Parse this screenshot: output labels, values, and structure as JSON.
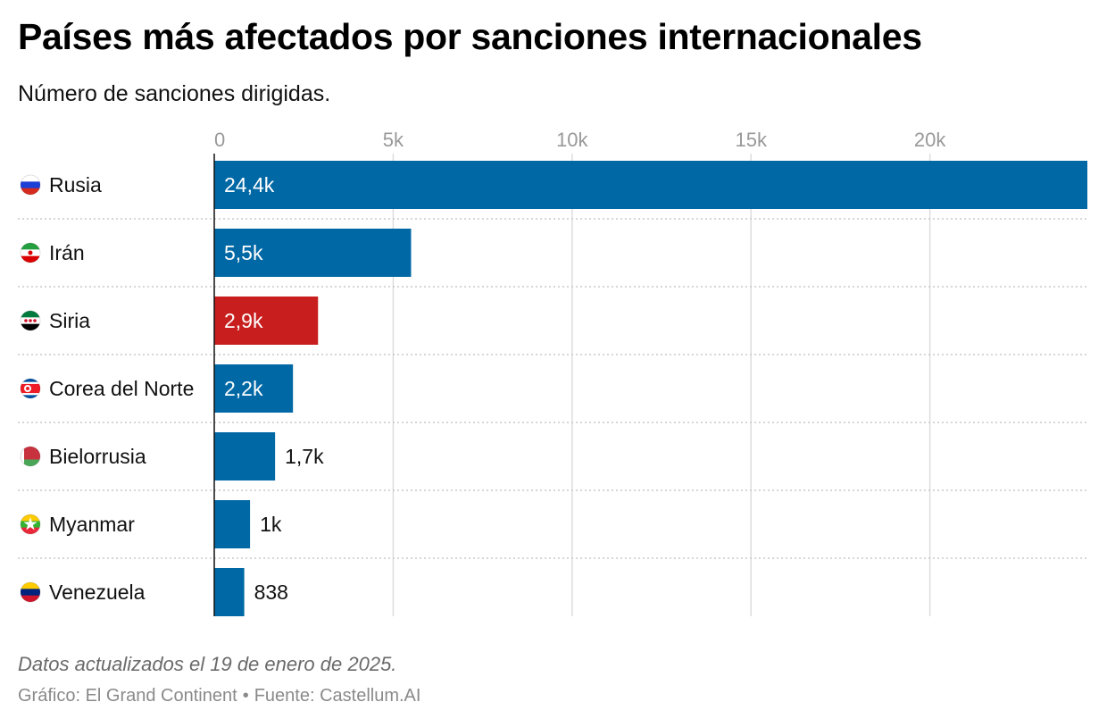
{
  "header": {
    "title": "Países más afectados por sanciones internacionales",
    "subtitle": "Número de sanciones dirigidas."
  },
  "footer": {
    "note": "Datos actualizados el 19 de enero de 2025.",
    "credit": "Gráfico: El Grand Continent",
    "separator": "•",
    "source": "Fuente: Castellum.AI"
  },
  "colors": {
    "bar": "#0068a5",
    "highlight": "#c81e1e",
    "grid": "#dddddd",
    "axis_text": "#999999"
  },
  "chart_data": {
    "type": "bar",
    "orientation": "horizontal",
    "title": "Países más afectados por sanciones internacionales",
    "subtitle": "Número de sanciones dirigidas.",
    "xlim": [
      0,
      24400
    ],
    "ticks": [
      0,
      5000,
      10000,
      15000,
      20000
    ],
    "tick_labels": [
      "0",
      "5k",
      "10k",
      "15k",
      "20k"
    ],
    "grid": true,
    "categories": [
      "Rusia",
      "Irán",
      "Siria",
      "Corea del Norte",
      "Bielorrusia",
      "Myanmar",
      "Venezuela"
    ],
    "values": [
      24400,
      5500,
      2900,
      2200,
      1700,
      1000,
      838
    ],
    "value_labels": [
      "24,4k",
      "5,5k",
      "2,9k",
      "2,2k",
      "1,7k",
      "1k",
      "838"
    ],
    "highlight": [
      "Siria"
    ],
    "flags": [
      "russia-flag-icon",
      "iran-flag-icon",
      "syria-flag-icon",
      "north-korea-flag-icon",
      "belarus-flag-icon",
      "myanmar-flag-icon",
      "venezuela-flag-icon"
    ]
  }
}
